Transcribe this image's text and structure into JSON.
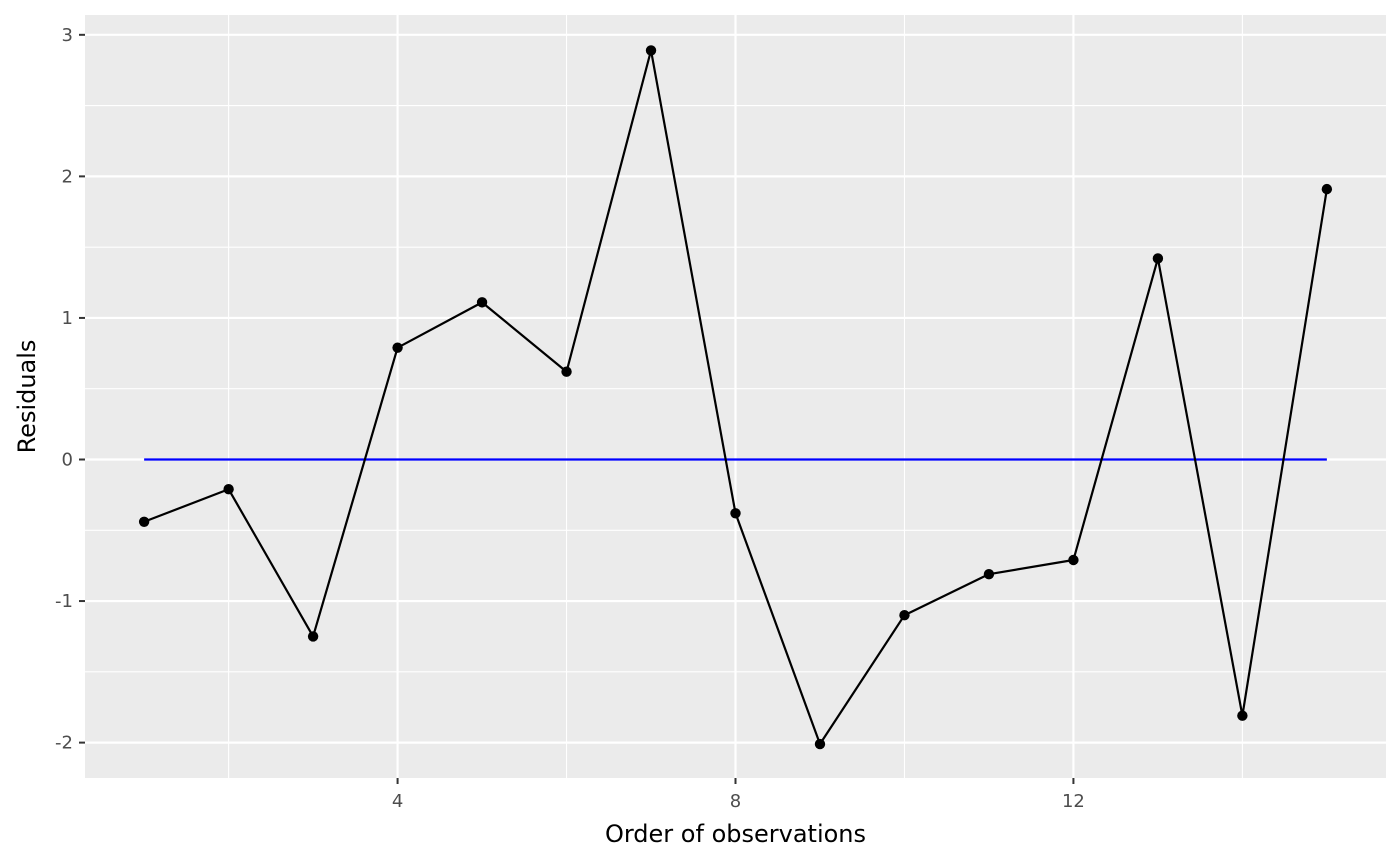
{
  "chart_data": {
    "type": "line",
    "xlabel": "Order of observations",
    "ylabel": "Residuals",
    "xlim": [
      0.3,
      15.7
    ],
    "ylim": [
      -2.25,
      3.14
    ],
    "x_ticks": [
      4,
      8,
      12
    ],
    "y_ticks": [
      -2,
      -1,
      0,
      1,
      2,
      3
    ],
    "x_tick_labels": [
      "4",
      "8",
      "12"
    ],
    "y_tick_labels": [
      "-2",
      "-1",
      "0",
      "1",
      "2",
      "3"
    ],
    "grid": true,
    "x": [
      1,
      2,
      3,
      4,
      5,
      6,
      7,
      8,
      9,
      10,
      11,
      12,
      13,
      14,
      15
    ],
    "series": [
      {
        "values": [
          -0.44,
          -0.21,
          -1.25,
          0.79,
          1.11,
          0.62,
          2.89,
          -0.38,
          -2.01,
          -1.1,
          -0.81,
          -0.71,
          1.42,
          -1.81,
          1.91
        ],
        "color": "#000000"
      }
    ],
    "reference_line": {
      "y": 0,
      "x_from": 1,
      "x_to": 15,
      "color": "#0000ff"
    },
    "panel_background": "#ebebeb",
    "grid_color": "#ffffff"
  }
}
